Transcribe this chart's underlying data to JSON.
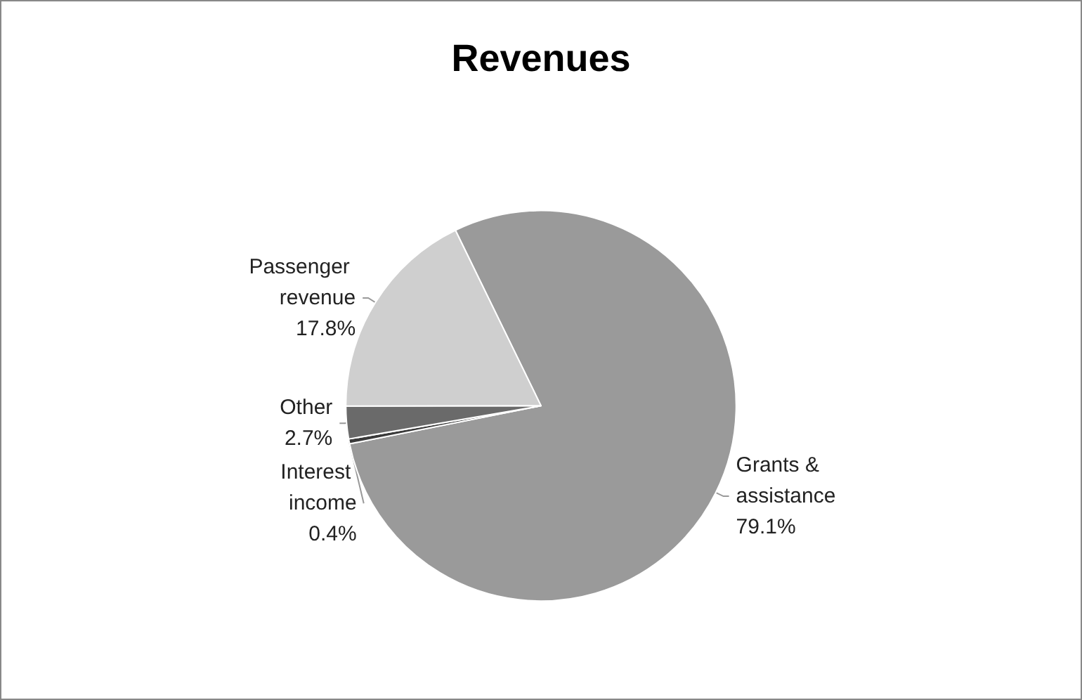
{
  "chart_data": {
    "type": "pie",
    "title": "Revenues",
    "categories": [
      "Grants & assistance",
      "Interest income",
      "Other",
      "Passenger revenue"
    ],
    "values": [
      79.1,
      0.4,
      2.7,
      17.8
    ],
    "colors": [
      "#9a9a9a",
      "#3a3a3a",
      "#6a6a6a",
      "#cfcfcf"
    ],
    "value_labels": [
      "79.1%",
      "0.4%",
      "2.7%",
      "17.8%"
    ],
    "legend": false
  }
}
